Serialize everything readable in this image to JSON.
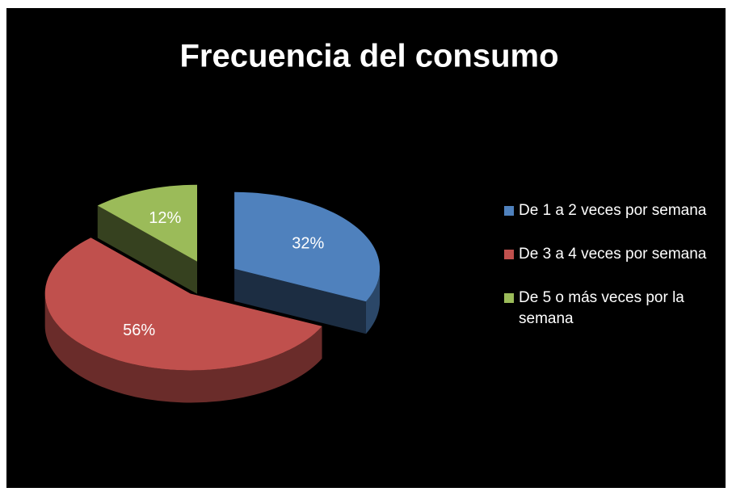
{
  "chart_data": {
    "type": "pie",
    "title": "Frecuencia del consumo",
    "categories": [
      "De 1 a 2 veces por semana",
      "De 3 a 4 veces por semana",
      "De 5 o más veces por la semana"
    ],
    "values": [
      32,
      56,
      12
    ],
    "value_labels": [
      "32%",
      "56%",
      "12%"
    ],
    "colors": [
      "#4f81bd",
      "#c0504d",
      "#9bbb59"
    ],
    "legend": "right"
  }
}
